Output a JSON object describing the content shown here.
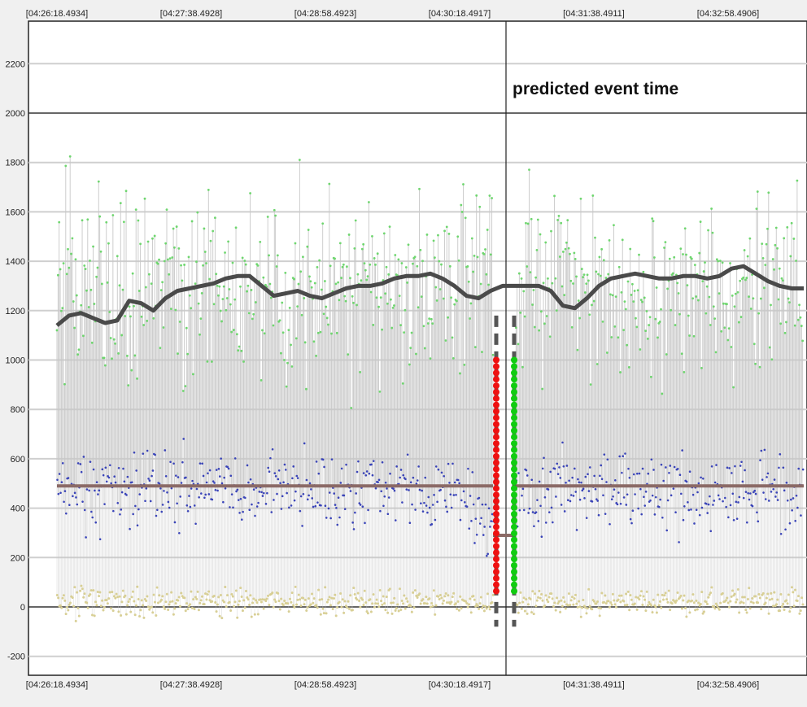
{
  "chart_data": {
    "type": "line",
    "title": "",
    "xlabel": "",
    "ylabel": "",
    "x_ticks_top": [
      "[04:26:18.4934]",
      "[04:27:38.4928]",
      "[04:28:58.4923]",
      "[04:30:18.4917]",
      "[04:31:38.4911]",
      "[04:32:58.4906]"
    ],
    "x_ticks_bottom": [
      "[04:26:18.4934]",
      "[04:27:38.4928]",
      "[04:28:58.4923]",
      "[04:30:18.4917]",
      "[04:31:38.4911]",
      "[04:32:58.4906]"
    ],
    "y_ticks": [
      2200,
      2000,
      1800,
      1600,
      1400,
      1200,
      1000,
      800,
      600,
      400,
      200,
      0,
      -200
    ],
    "ylim": [
      -270,
      2350
    ],
    "grid": true,
    "annotation": "predicted event time",
    "smoothed_trend": [
      1140,
      1180,
      1190,
      1170,
      1150,
      1160,
      1240,
      1230,
      1200,
      1250,
      1280,
      1290,
      1300,
      1310,
      1330,
      1340,
      1340,
      1300,
      1260,
      1270,
      1280,
      1260,
      1250,
      1270,
      1290,
      1300,
      1300,
      1310,
      1330,
      1340,
      1340,
      1350,
      1330,
      1300,
      1260,
      1250,
      1280,
      1300,
      1300,
      1300,
      1300,
      1280,
      1220,
      1210,
      1250,
      1300,
      1330,
      1340,
      1350,
      1340,
      1330,
      1330,
      1340,
      1340,
      1330,
      1340,
      1370,
      1380,
      1350,
      1320,
      1300,
      1290,
      1290
    ],
    "baseline_value": 490,
    "event_value": 290,
    "series_colors": {
      "high": "#6fd66f",
      "mid": "#3a44b8",
      "low": "#d8cf95",
      "range_lines": "#c8c8c8",
      "trend": "#4a4a4a",
      "baseline": "#8b6a66",
      "before_event": "#ee1111",
      "after_event": "#11cc11"
    }
  }
}
